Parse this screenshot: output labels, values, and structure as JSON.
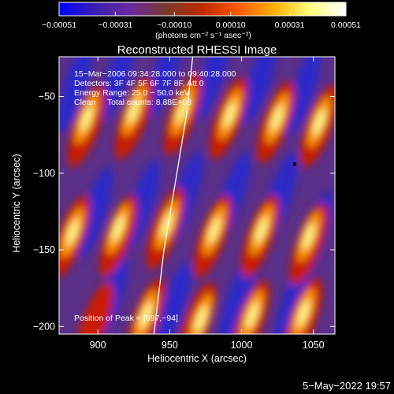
{
  "chart_data": {
    "type": "heatmap",
    "title": "Reconstructed RHESSI Image",
    "xlabel": "Heliocentric X (arcsec)",
    "ylabel": "Heliocentric Y (arcsec)",
    "xlim": [
      873,
      1065
    ],
    "ylim": [
      -205,
      -24
    ],
    "x_ticks": [
      900,
      950,
      1000,
      1050
    ],
    "x_tick_labels": [
      "900",
      "950",
      "1000",
      "1050"
    ],
    "y_ticks": [
      -50,
      -100,
      -150,
      -200
    ],
    "y_tick_labels": [
      "−50",
      "−100",
      "−150",
      "−200"
    ],
    "colorbar": {
      "min": -0.00051,
      "max": 0.00051,
      "ticks": [
        -0.00051,
        -0.00031,
        -0.0001,
        0.0001,
        0.00031,
        0.00051
      ],
      "tick_labels": [
        "−0.00051",
        "−0.00031",
        "−0.00010",
        "0.00010",
        "0.00031",
        "0.00051"
      ],
      "unit_label": "(photons cm⁻² s⁻¹ asec⁻²)",
      "colors": [
        "#0000ff",
        "#3a1fb0",
        "#6a2aa0",
        "#7a3a2a",
        "#c02800",
        "#ff5a00",
        "#ffb000",
        "#ffff80",
        "#ffffff"
      ]
    },
    "info_lines": [
      "15−Mar−2006 09:34:28.000 to 09:40:28.000",
      "Detectors: 3F 4F 5F 6F 7F 8F, Att 0",
      "Energy Range: 25.0 − 50.0 keV",
      "Clean     Total counts: 8.88E+03"
    ],
    "peak_label": "Position of Peak = [997,−94]",
    "peak": [
      997,
      -94
    ],
    "limb_arc": [
      [
        966,
        -24
      ],
      [
        962,
        -60
      ],
      [
        955,
        -100
      ],
      [
        946,
        -150
      ],
      [
        939,
        -205
      ]
    ],
    "grid": false,
    "timestamp": "5−May−2022 19:57"
  }
}
